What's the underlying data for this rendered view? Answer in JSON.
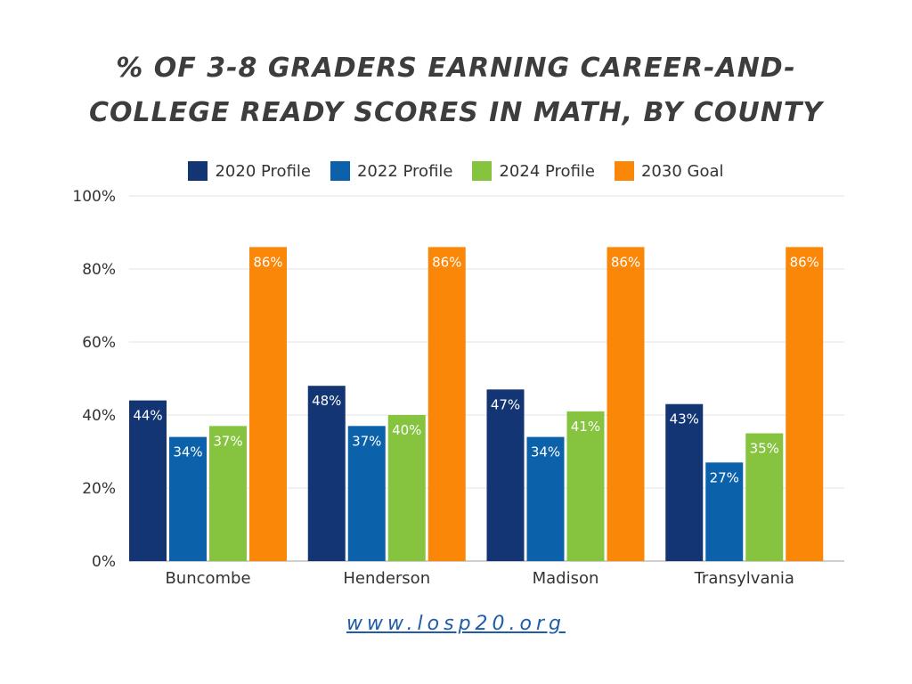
{
  "chart_data": {
    "type": "bar",
    "title_lines": [
      "% OF 3-8 GRADERS EARNING CAREER-AND-",
      "COLLEGE READY SCORES IN MATH, BY COUNTY"
    ],
    "categories": [
      "Buncombe",
      "Henderson",
      "Madison",
      "Transylvania"
    ],
    "series": [
      {
        "name": "2020 Profile",
        "color": "#133573",
        "values": [
          44,
          48,
          47,
          43
        ]
      },
      {
        "name": "2022 Profile",
        "color": "#0b62ab",
        "values": [
          34,
          37,
          34,
          27
        ]
      },
      {
        "name": "2024 Profile",
        "color": "#86c440",
        "values": [
          37,
          40,
          41,
          35
        ]
      },
      {
        "name": "2030 Goal",
        "color": "#fb8708",
        "values": [
          86,
          86,
          86,
          86
        ]
      }
    ],
    "ylim": [
      0,
      100
    ],
    "yticks": [
      0,
      20,
      40,
      60,
      80,
      100
    ],
    "ytick_labels": [
      "0%",
      "20%",
      "40%",
      "60%",
      "80%",
      "100%"
    ],
    "data_label_suffix": "%",
    "grid": true,
    "legend_position": "top"
  },
  "footer": {
    "url_text": "www.losp20.org"
  }
}
